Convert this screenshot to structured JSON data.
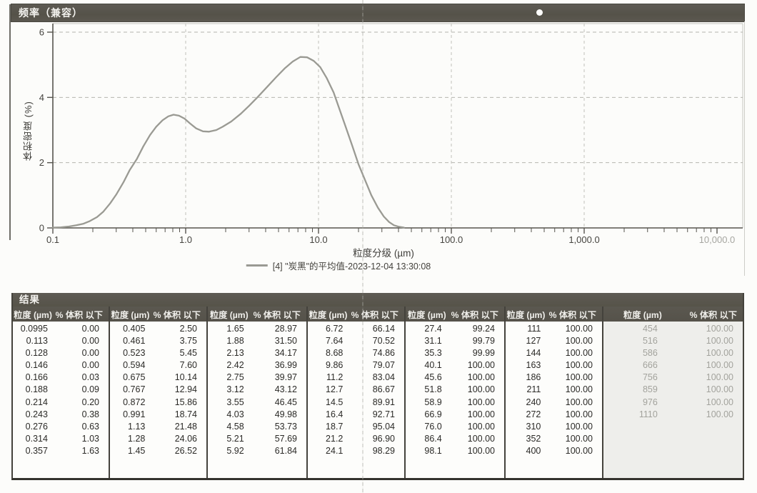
{
  "chart": {
    "title_bar": "频率（兼容）",
    "ylabel": "体积密度 (%)",
    "xlabel": "粒度分级 (µm)",
    "legend_label": "[4] \"炭黑\"的平均值-2023-12-04 13:30:08"
  },
  "chart_data": {
    "type": "line",
    "title": "频率（兼容）",
    "xlabel": "粒度分级 (µm)",
    "ylabel": "体积密度 (%)",
    "x_scale": "log",
    "xlim": [
      0.1,
      10000
    ],
    "ylim": [
      0,
      6.26
    ],
    "grid": true,
    "legend_position": "bottom",
    "xticks": [
      "0.1",
      "1.0",
      "10.0",
      "100.0",
      "1,000.0",
      "10,000.0"
    ],
    "xtick_values": [
      0.1,
      1,
      10,
      100,
      1000,
      10000
    ],
    "yticks": [
      "0",
      "2",
      "4",
      "6"
    ],
    "ytick_values": [
      0,
      2,
      4,
      6
    ],
    "series": [
      {
        "name": "[4] \"炭黑\"的平均值-2023-12-04 13:30:08",
        "x": [
          0.1,
          0.115,
          0.13,
          0.15,
          0.17,
          0.19,
          0.215,
          0.24,
          0.27,
          0.3,
          0.34,
          0.38,
          0.43,
          0.48,
          0.54,
          0.6,
          0.67,
          0.74,
          0.81,
          0.89,
          0.98,
          1.08,
          1.2,
          1.35,
          1.5,
          1.7,
          1.9,
          2.2,
          2.6,
          3.0,
          3.5,
          4.1,
          4.8,
          5.6,
          6.4,
          7.3,
          8.2,
          9.2,
          10.3,
          11.5,
          13.0,
          14.5,
          16.0,
          18.0,
          20.0,
          22.5,
          25.0,
          28.0,
          31.0,
          34.0,
          37.0,
          40.0,
          44.0
        ],
        "y": [
          0.01,
          0.02,
          0.04,
          0.08,
          0.13,
          0.21,
          0.33,
          0.5,
          0.75,
          1.02,
          1.4,
          1.78,
          2.12,
          2.5,
          2.85,
          3.1,
          3.3,
          3.42,
          3.47,
          3.44,
          3.35,
          3.2,
          3.05,
          2.96,
          2.95,
          3.0,
          3.1,
          3.26,
          3.5,
          3.74,
          4.02,
          4.32,
          4.62,
          4.9,
          5.1,
          5.24,
          5.23,
          5.12,
          4.93,
          4.6,
          4.15,
          3.6,
          3.1,
          2.5,
          1.95,
          1.45,
          1.0,
          0.62,
          0.35,
          0.18,
          0.08,
          0.04,
          0.01
        ]
      }
    ]
  },
  "table": {
    "section_title": "结果",
    "size_header": "粒度 (µm)",
    "pct_header": "% 体积 以下",
    "groups": [
      {
        "faded": false,
        "rows": [
          [
            "0.0995",
            "0.00"
          ],
          [
            "0.113",
            "0.00"
          ],
          [
            "0.128",
            "0.00"
          ],
          [
            "0.146",
            "0.00"
          ],
          [
            "0.166",
            "0.03"
          ],
          [
            "0.188",
            "0.09"
          ],
          [
            "0.214",
            "0.20"
          ],
          [
            "0.243",
            "0.38"
          ],
          [
            "0.276",
            "0.63"
          ],
          [
            "0.314",
            "1.03"
          ],
          [
            "0.357",
            "1.63"
          ]
        ]
      },
      {
        "faded": false,
        "rows": [
          [
            "0.405",
            "2.50"
          ],
          [
            "0.461",
            "3.75"
          ],
          [
            "0.523",
            "5.45"
          ],
          [
            "0.594",
            "7.60"
          ],
          [
            "0.675",
            "10.14"
          ],
          [
            "0.767",
            "12.94"
          ],
          [
            "0.872",
            "15.86"
          ],
          [
            "0.991",
            "18.74"
          ],
          [
            "1.13",
            "21.48"
          ],
          [
            "1.28",
            "24.06"
          ],
          [
            "1.45",
            "26.52"
          ]
        ]
      },
      {
        "faded": false,
        "rows": [
          [
            "1.65",
            "28.97"
          ],
          [
            "1.88",
            "31.50"
          ],
          [
            "2.13",
            "34.17"
          ],
          [
            "2.42",
            "36.99"
          ],
          [
            "2.75",
            "39.97"
          ],
          [
            "3.12",
            "43.12"
          ],
          [
            "3.55",
            "46.45"
          ],
          [
            "4.03",
            "49.98"
          ],
          [
            "4.58",
            "53.73"
          ],
          [
            "5.21",
            "57.69"
          ],
          [
            "5.92",
            "61.84"
          ]
        ]
      },
      {
        "faded": false,
        "rows": [
          [
            "6.72",
            "66.14"
          ],
          [
            "7.64",
            "70.52"
          ],
          [
            "8.68",
            "74.86"
          ],
          [
            "9.86",
            "79.07"
          ],
          [
            "11.2",
            "83.04"
          ],
          [
            "12.7",
            "86.67"
          ],
          [
            "14.5",
            "89.91"
          ],
          [
            "16.4",
            "92.71"
          ],
          [
            "18.7",
            "95.04"
          ],
          [
            "21.2",
            "96.90"
          ],
          [
            "24.1",
            "98.29"
          ]
        ]
      },
      {
        "faded": false,
        "rows": [
          [
            "27.4",
            "99.24"
          ],
          [
            "31.1",
            "99.79"
          ],
          [
            "35.3",
            "99.99"
          ],
          [
            "40.1",
            "100.00"
          ],
          [
            "45.6",
            "100.00"
          ],
          [
            "51.8",
            "100.00"
          ],
          [
            "58.9",
            "100.00"
          ],
          [
            "66.9",
            "100.00"
          ],
          [
            "76.0",
            "100.00"
          ],
          [
            "86.4",
            "100.00"
          ],
          [
            "98.1",
            "100.00"
          ]
        ]
      },
      {
        "faded": false,
        "rows": [
          [
            "111",
            "100.00"
          ],
          [
            "127",
            "100.00"
          ],
          [
            "144",
            "100.00"
          ],
          [
            "163",
            "100.00"
          ],
          [
            "186",
            "100.00"
          ],
          [
            "211",
            "100.00"
          ],
          [
            "240",
            "100.00"
          ],
          [
            "272",
            "100.00"
          ],
          [
            "310",
            "100.00"
          ],
          [
            "352",
            "100.00"
          ],
          [
            "400",
            "100.00"
          ]
        ]
      },
      {
        "faded": true,
        "rows": [
          [
            "454",
            "100.00"
          ],
          [
            "516",
            "100.00"
          ],
          [
            "586",
            "100.00"
          ],
          [
            "666",
            "100.00"
          ],
          [
            "756",
            "100.00"
          ],
          [
            "859",
            "100.00"
          ],
          [
            "976",
            "100.00"
          ],
          [
            "1110",
            "100.00"
          ]
        ]
      }
    ]
  },
  "colors": {
    "header_bar": "#59564f",
    "header_text": "#f4f3ef",
    "curve": "#9a9a93",
    "axis": "#56544e",
    "grid": "#b5b5af",
    "body_text": "#2b2a27",
    "faded_text": "#a3a39d",
    "faded_bg": "#eeeeeb"
  }
}
